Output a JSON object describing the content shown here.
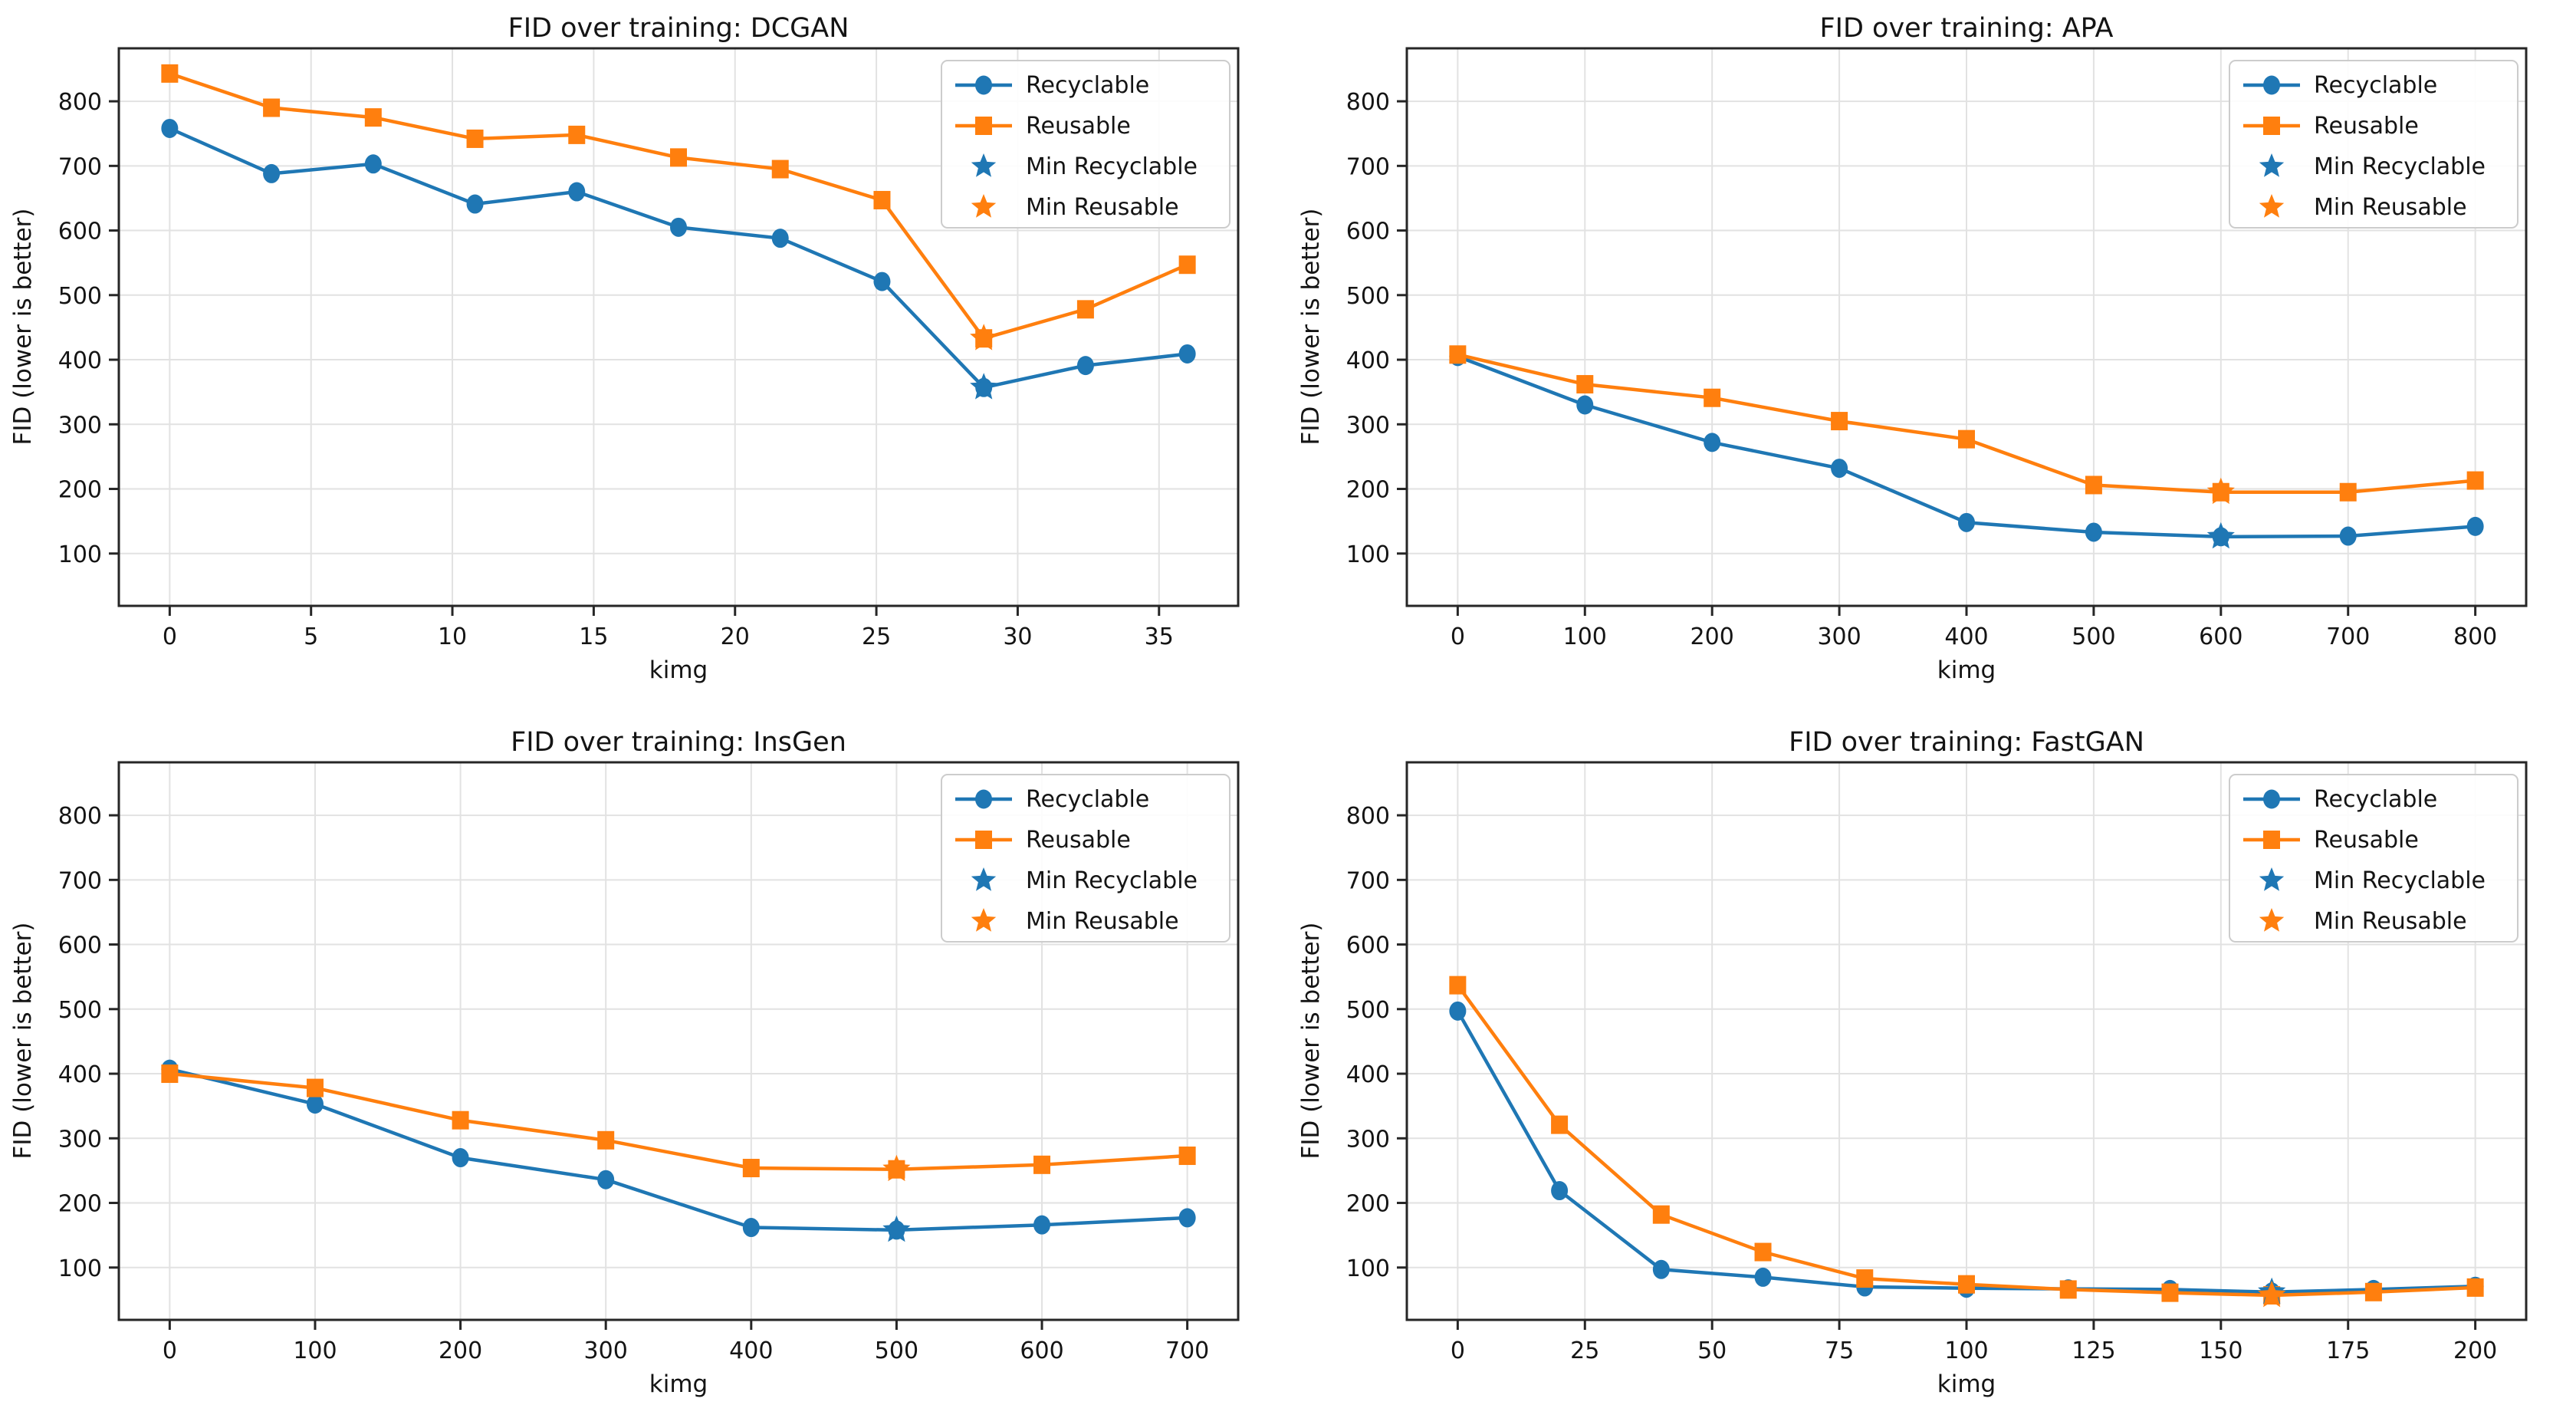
{
  "figure": {
    "background": "#ffffff",
    "grid_color": "#e2e2e2",
    "spine_color": "#262626",
    "text_color": "#141414",
    "legend_border": "#cccccc",
    "accent_blue": "#1f77b4",
    "accent_orange": "#ff7f0e"
  },
  "legend_items": [
    {
      "label": "Recyclable",
      "swatch": "line-circle",
      "color": "#1f77b4"
    },
    {
      "label": "Reusable",
      "swatch": "line-square",
      "color": "#ff7f0e"
    },
    {
      "label": "Min Recyclable",
      "swatch": "star",
      "color": "#1f77b4"
    },
    {
      "label": "Min Reusable",
      "swatch": "star",
      "color": "#ff7f0e"
    }
  ],
  "chart_data": [
    {
      "type": "line",
      "title": "FID over training: DCGAN",
      "xlabel": "kimg",
      "ylabel": "FID (lower is better)",
      "x": [
        0,
        3.6,
        7.2,
        10.8,
        14.4,
        18,
        21.6,
        25.2,
        28.8,
        32.4,
        36
      ],
      "xticks": [
        0,
        5,
        10,
        15,
        20,
        25,
        30,
        35
      ],
      "xlim": [
        -1.8,
        37.8
      ],
      "ylim": [
        19,
        882
      ],
      "yticks": [
        100,
        200,
        300,
        400,
        500,
        600,
        700,
        800
      ],
      "grid": true,
      "legend_position": "upper right",
      "series": [
        {
          "name": "Recyclable",
          "color": "#1f77b4",
          "marker": "circle",
          "values": [
            758,
            688,
            703,
            641,
            660,
            605,
            588,
            521,
            357,
            391,
            409
          ]
        },
        {
          "name": "Reusable",
          "color": "#ff7f0e",
          "marker": "square",
          "values": [
            843,
            790,
            775,
            742,
            748,
            713,
            695,
            647,
            433,
            478,
            547
          ]
        }
      ],
      "min_markers": [
        {
          "name": "Min Recyclable",
          "color": "#1f77b4",
          "x": 28.8,
          "y": 357
        },
        {
          "name": "Min Reusable",
          "color": "#ff7f0e",
          "x": 28.8,
          "y": 433
        }
      ]
    },
    {
      "type": "line",
      "title": "FID over training: APA",
      "xlabel": "kimg",
      "ylabel": "FID (lower is better)",
      "x": [
        0,
        100,
        200,
        300,
        400,
        500,
        600,
        700,
        800
      ],
      "xticks": [
        0,
        100,
        200,
        300,
        400,
        500,
        600,
        700,
        800
      ],
      "xlim": [
        -40,
        840
      ],
      "ylim": [
        19,
        882
      ],
      "yticks": [
        100,
        200,
        300,
        400,
        500,
        600,
        700,
        800
      ],
      "grid": true,
      "legend_position": "upper right",
      "series": [
        {
          "name": "Recyclable",
          "color": "#1f77b4",
          "marker": "circle",
          "values": [
            405,
            330,
            272,
            232,
            148,
            133,
            126,
            127,
            142
          ]
        },
        {
          "name": "Reusable",
          "color": "#ff7f0e",
          "marker": "square",
          "values": [
            408,
            362,
            341,
            305,
            277,
            206,
            195,
            195,
            213
          ]
        }
      ],
      "min_markers": [
        {
          "name": "Min Recyclable",
          "color": "#1f77b4",
          "x": 600,
          "y": 126
        },
        {
          "name": "Min Reusable",
          "color": "#ff7f0e",
          "x": 600,
          "y": 195
        }
      ]
    },
    {
      "type": "line",
      "title": "FID over training: InsGen",
      "xlabel": "kimg",
      "ylabel": "FID (lower is better)",
      "x": [
        0,
        100,
        200,
        300,
        400,
        500,
        600,
        700
      ],
      "xticks": [
        0,
        100,
        200,
        300,
        400,
        500,
        600,
        700
      ],
      "xlim": [
        -35,
        735
      ],
      "ylim": [
        19,
        882
      ],
      "yticks": [
        100,
        200,
        300,
        400,
        500,
        600,
        700,
        800
      ],
      "grid": true,
      "legend_position": "upper right",
      "series": [
        {
          "name": "Recyclable",
          "color": "#1f77b4",
          "marker": "circle",
          "values": [
            407,
            353,
            270,
            236,
            162,
            158,
            166,
            177
          ]
        },
        {
          "name": "Reusable",
          "color": "#ff7f0e",
          "marker": "square",
          "values": [
            400,
            378,
            328,
            297,
            254,
            252,
            259,
            273
          ]
        }
      ],
      "min_markers": [
        {
          "name": "Min Recyclable",
          "color": "#1f77b4",
          "x": 500,
          "y": 158
        },
        {
          "name": "Min Reusable",
          "color": "#ff7f0e",
          "x": 500,
          "y": 252
        }
      ]
    },
    {
      "type": "line",
      "title": "FID over training: FastGAN",
      "xlabel": "kimg",
      "ylabel": "FID (lower is better)",
      "x": [
        0,
        20,
        40,
        60,
        80,
        100,
        120,
        140,
        160,
        180,
        200
      ],
      "xticks": [
        0,
        25,
        50,
        75,
        100,
        125,
        150,
        175,
        200
      ],
      "xlim": [
        -10,
        210
      ],
      "ylim": [
        19,
        882
      ],
      "yticks": [
        100,
        200,
        300,
        400,
        500,
        600,
        700,
        800
      ],
      "grid": true,
      "legend_position": "upper right",
      "series": [
        {
          "name": "Recyclable",
          "color": "#1f77b4",
          "marker": "circle",
          "values": [
            497,
            219,
            97,
            85,
            70,
            68,
            67,
            66,
            62,
            66,
            71
          ]
        },
        {
          "name": "Reusable",
          "color": "#ff7f0e",
          "marker": "square",
          "values": [
            537,
            321,
            182,
            124,
            83,
            74,
            66,
            61,
            57,
            62,
            69
          ]
        }
      ],
      "min_markers": [
        {
          "name": "Min Recyclable",
          "color": "#1f77b4",
          "x": 160,
          "y": 62
        },
        {
          "name": "Min Reusable",
          "color": "#ff7f0e",
          "x": 160,
          "y": 57
        }
      ]
    }
  ]
}
